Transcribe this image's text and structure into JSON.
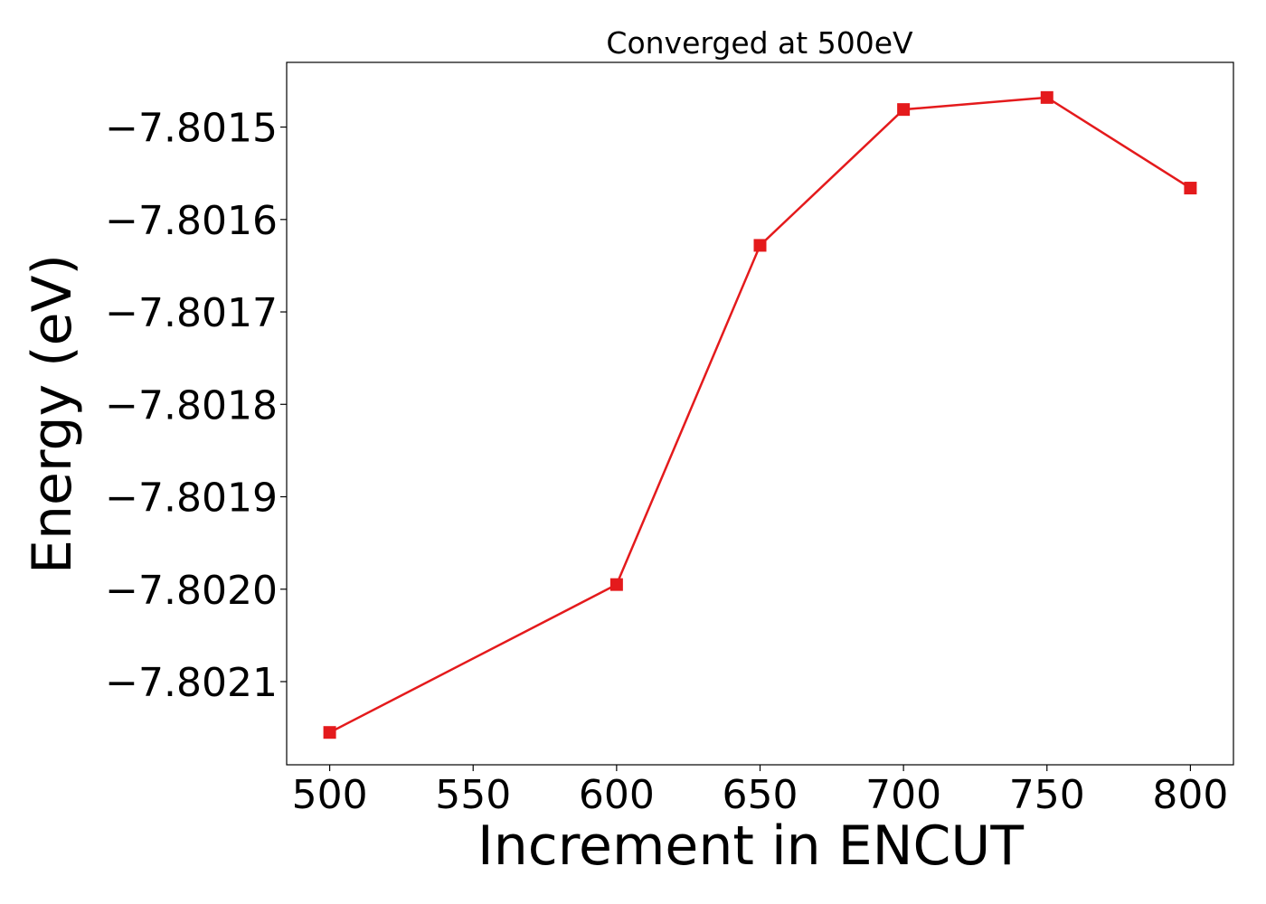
{
  "chart_data": {
    "type": "line",
    "title": "Converged at 500eV",
    "xlabel": "Increment in ENCUT",
    "ylabel": "Energy (eV)",
    "x": [
      500,
      600,
      650,
      700,
      750,
      800
    ],
    "series": [
      {
        "values": [
          -7.802155,
          -7.801995,
          -7.801628,
          -7.801481,
          -7.801468,
          -7.801566
        ],
        "color": "#e41a1c",
        "marker": "square"
      }
    ],
    "xticks": [
      500,
      550,
      600,
      650,
      700,
      750,
      800
    ],
    "xtick_labels": [
      "500",
      "550",
      "600",
      "650",
      "700",
      "750",
      "800"
    ],
    "yticks": [
      -7.8021,
      -7.802,
      -7.8019,
      -7.8018,
      -7.8017,
      -7.8016,
      -7.8015
    ],
    "ytick_labels": [
      "−7.8021",
      "−7.8020",
      "−7.8019",
      "−7.8018",
      "−7.8017",
      "−7.8016",
      "−7.8015"
    ],
    "xlim": [
      485,
      815
    ],
    "ylim": [
      -7.80219,
      -7.80143
    ],
    "grid": false,
    "legend": "none"
  }
}
